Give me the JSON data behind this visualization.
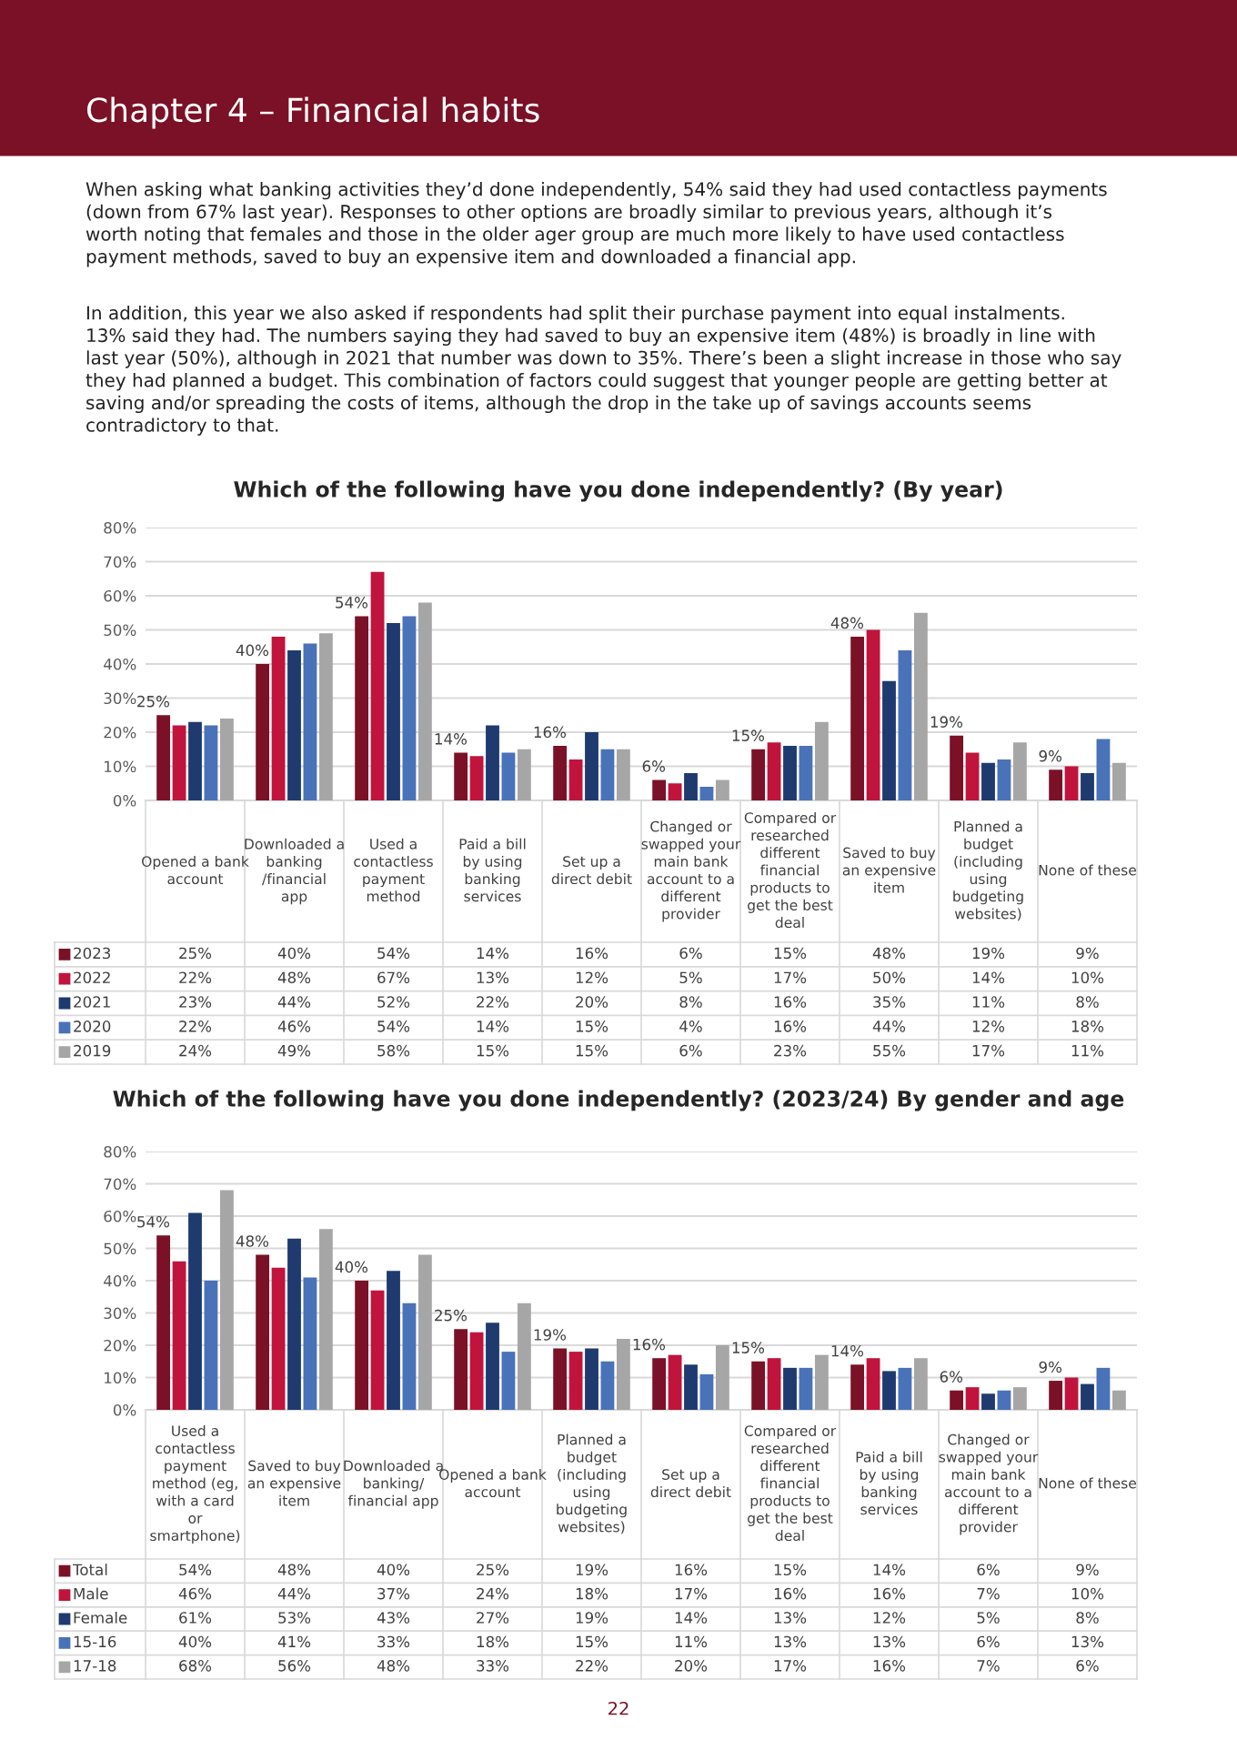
{
  "chart_data": [
    {
      "type": "bar",
      "title": "Which of the following have you done independently? (By year)",
      "annotations": [
        "Chapter 4 – Financial habits",
        "When asking what banking activities they’d done independently, 54% said they had used contactless payments (down from 67% last year). Responses to other options are broadly similar to previous years, although it’s worth noting that females and those in the older ager group are much more likely to have used contactless payment methods, saved to buy an expensive item and downloaded a financial app.",
        "In addition, this year we also asked if respondents had split their purchase payment into equal instalments. 13% said they had. The numbers saying they had saved to buy an expensive item (48%) is broadly in line with last year (50%), although in 2021 that number was down to 35%. There’s been a slight increase in those who say they had planned a budget. This combination of factors could suggest that younger people are getting better at saving and/or spreading the costs of items, although the drop in the take up of savings accounts seems contradictory to that."
      ],
      "categories": [
        "Opened a bank account",
        "Downloaded a banking /financial app",
        "Used a contactless payment method",
        "Paid a bill by using banking services",
        "Set up a direct debit",
        "Changed or swapped your main bank account to a different provider",
        "Compared or researched different financial products to get the best deal",
        "Saved to buy an expensive item",
        "Planned a budget (including using budgeting websites)",
        "None of these"
      ],
      "series": [
        {
          "name": "2023",
          "color": "#7b1126",
          "values": [
            25,
            40,
            54,
            14,
            16,
            6,
            15,
            48,
            19,
            9
          ],
          "value_labels": [
            "25%",
            "40%",
            "54%",
            "14%",
            "16%",
            "6%",
            "15%",
            "48%",
            "19%",
            "9%"
          ]
        },
        {
          "name": "2022",
          "color": "#c0143c",
          "values": [
            22,
            48,
            67,
            13,
            12,
            5,
            17,
            50,
            14,
            10
          ],
          "value_labels": [
            "22%",
            "48%",
            "67%",
            "13%",
            "12%",
            "5%",
            "17%",
            "50%",
            "14%",
            "10%"
          ]
        },
        {
          "name": "2021",
          "color": "#1f3a6e",
          "values": [
            23,
            44,
            52,
            22,
            20,
            8,
            16,
            35,
            11,
            8
          ],
          "value_labels": [
            "23%",
            "44%",
            "52%",
            "22%",
            "20%",
            "8%",
            "16%",
            "35%",
            "11%",
            "8%"
          ]
        },
        {
          "name": "2020",
          "color": "#4a72b8",
          "values": [
            22,
            46,
            54,
            14,
            15,
            4,
            16,
            44,
            12,
            18
          ],
          "value_labels": [
            "22%",
            "46%",
            "54%",
            "14%",
            "15%",
            "4%",
            "16%",
            "44%",
            "12%",
            "18%"
          ]
        },
        {
          "name": "2019",
          "color": "#a6a6a6",
          "values": [
            24,
            49,
            58,
            15,
            15,
            6,
            23,
            55,
            17,
            11
          ],
          "value_labels": [
            "24%",
            "49%",
            "58%",
            "15%",
            "15%",
            "6%",
            "23%",
            "55%",
            "17%",
            "11%"
          ]
        }
      ],
      "ylim": [
        0,
        80
      ],
      "yticks": [
        {
          "value": 0,
          "label": "0%"
        },
        {
          "value": 10,
          "label": "10%"
        },
        {
          "value": 20,
          "label": "20%"
        },
        {
          "value": 30,
          "label": "30%"
        },
        {
          "value": 40,
          "label": "40%"
        },
        {
          "value": 50,
          "label": "50%"
        },
        {
          "value": 60,
          "label": "60%"
        },
        {
          "value": 70,
          "label": "70%"
        },
        {
          "value": 80,
          "label": "80%"
        }
      ],
      "grid": "y",
      "legend": "bottom"
    },
    {
      "type": "bar",
      "title": "Which of the following have you done independently? (2023/24) By gender and age",
      "annotations": [
        "22"
      ],
      "categories": [
        "Used a contactless payment method (eg, with a card or smartphone)",
        "Saved to buy an expensive item",
        "Downloaded a banking/ financial app",
        "Opened a bank account",
        "Planned a budget (including using budgeting websites)",
        "Set up a direct debit",
        "Compared or researched different financial products to get the best deal",
        "Paid a bill by using banking services",
        "Changed or swapped your main bank account to a different provider",
        "None of these"
      ],
      "series": [
        {
          "name": "Total",
          "color": "#7b1126",
          "values": [
            54,
            48,
            40,
            25,
            19,
            16,
            15,
            14,
            6,
            9
          ],
          "value_labels": [
            "54%",
            "48%",
            "40%",
            "25%",
            "19%",
            "16%",
            "15%",
            "14%",
            "6%",
            "9%"
          ]
        },
        {
          "name": "Male",
          "color": "#c0143c",
          "values": [
            46,
            44,
            37,
            24,
            18,
            17,
            16,
            16,
            7,
            10
          ],
          "value_labels": [
            "46%",
            "44%",
            "37%",
            "24%",
            "18%",
            "17%",
            "16%",
            "16%",
            "7%",
            "10%"
          ]
        },
        {
          "name": "Female",
          "color": "#1f3a6e",
          "values": [
            61,
            53,
            43,
            27,
            19,
            14,
            13,
            12,
            5,
            8
          ],
          "value_labels": [
            "61%",
            "53%",
            "43%",
            "27%",
            "19%",
            "14%",
            "13%",
            "12%",
            "5%",
            "8%"
          ]
        },
        {
          "name": "15-16",
          "color": "#4a72b8",
          "values": [
            40,
            41,
            33,
            18,
            15,
            11,
            13,
            13,
            6,
            13
          ],
          "value_labels": [
            "40%",
            "41%",
            "33%",
            "18%",
            "15%",
            "11%",
            "13%",
            "13%",
            "6%",
            "13%"
          ]
        },
        {
          "name": "17-18",
          "color": "#a6a6a6",
          "values": [
            68,
            56,
            48,
            33,
            22,
            20,
            17,
            16,
            7,
            6
          ],
          "value_labels": [
            "68%",
            "56%",
            "48%",
            "33%",
            "22%",
            "20%",
            "17%",
            "16%",
            "7%",
            "6%"
          ]
        }
      ],
      "ylim": [
        0,
        80
      ],
      "yticks": [
        {
          "value": 0,
          "label": "0%"
        },
        {
          "value": 10,
          "label": "10%"
        },
        {
          "value": 20,
          "label": "20%"
        },
        {
          "value": 30,
          "label": "30%"
        },
        {
          "value": 40,
          "label": "40%"
        },
        {
          "value": 50,
          "label": "50%"
        },
        {
          "value": 60,
          "label": "60%"
        },
        {
          "value": 70,
          "label": "70%"
        },
        {
          "value": 80,
          "label": "80%"
        }
      ],
      "grid": "y",
      "legend": "bottom"
    }
  ]
}
